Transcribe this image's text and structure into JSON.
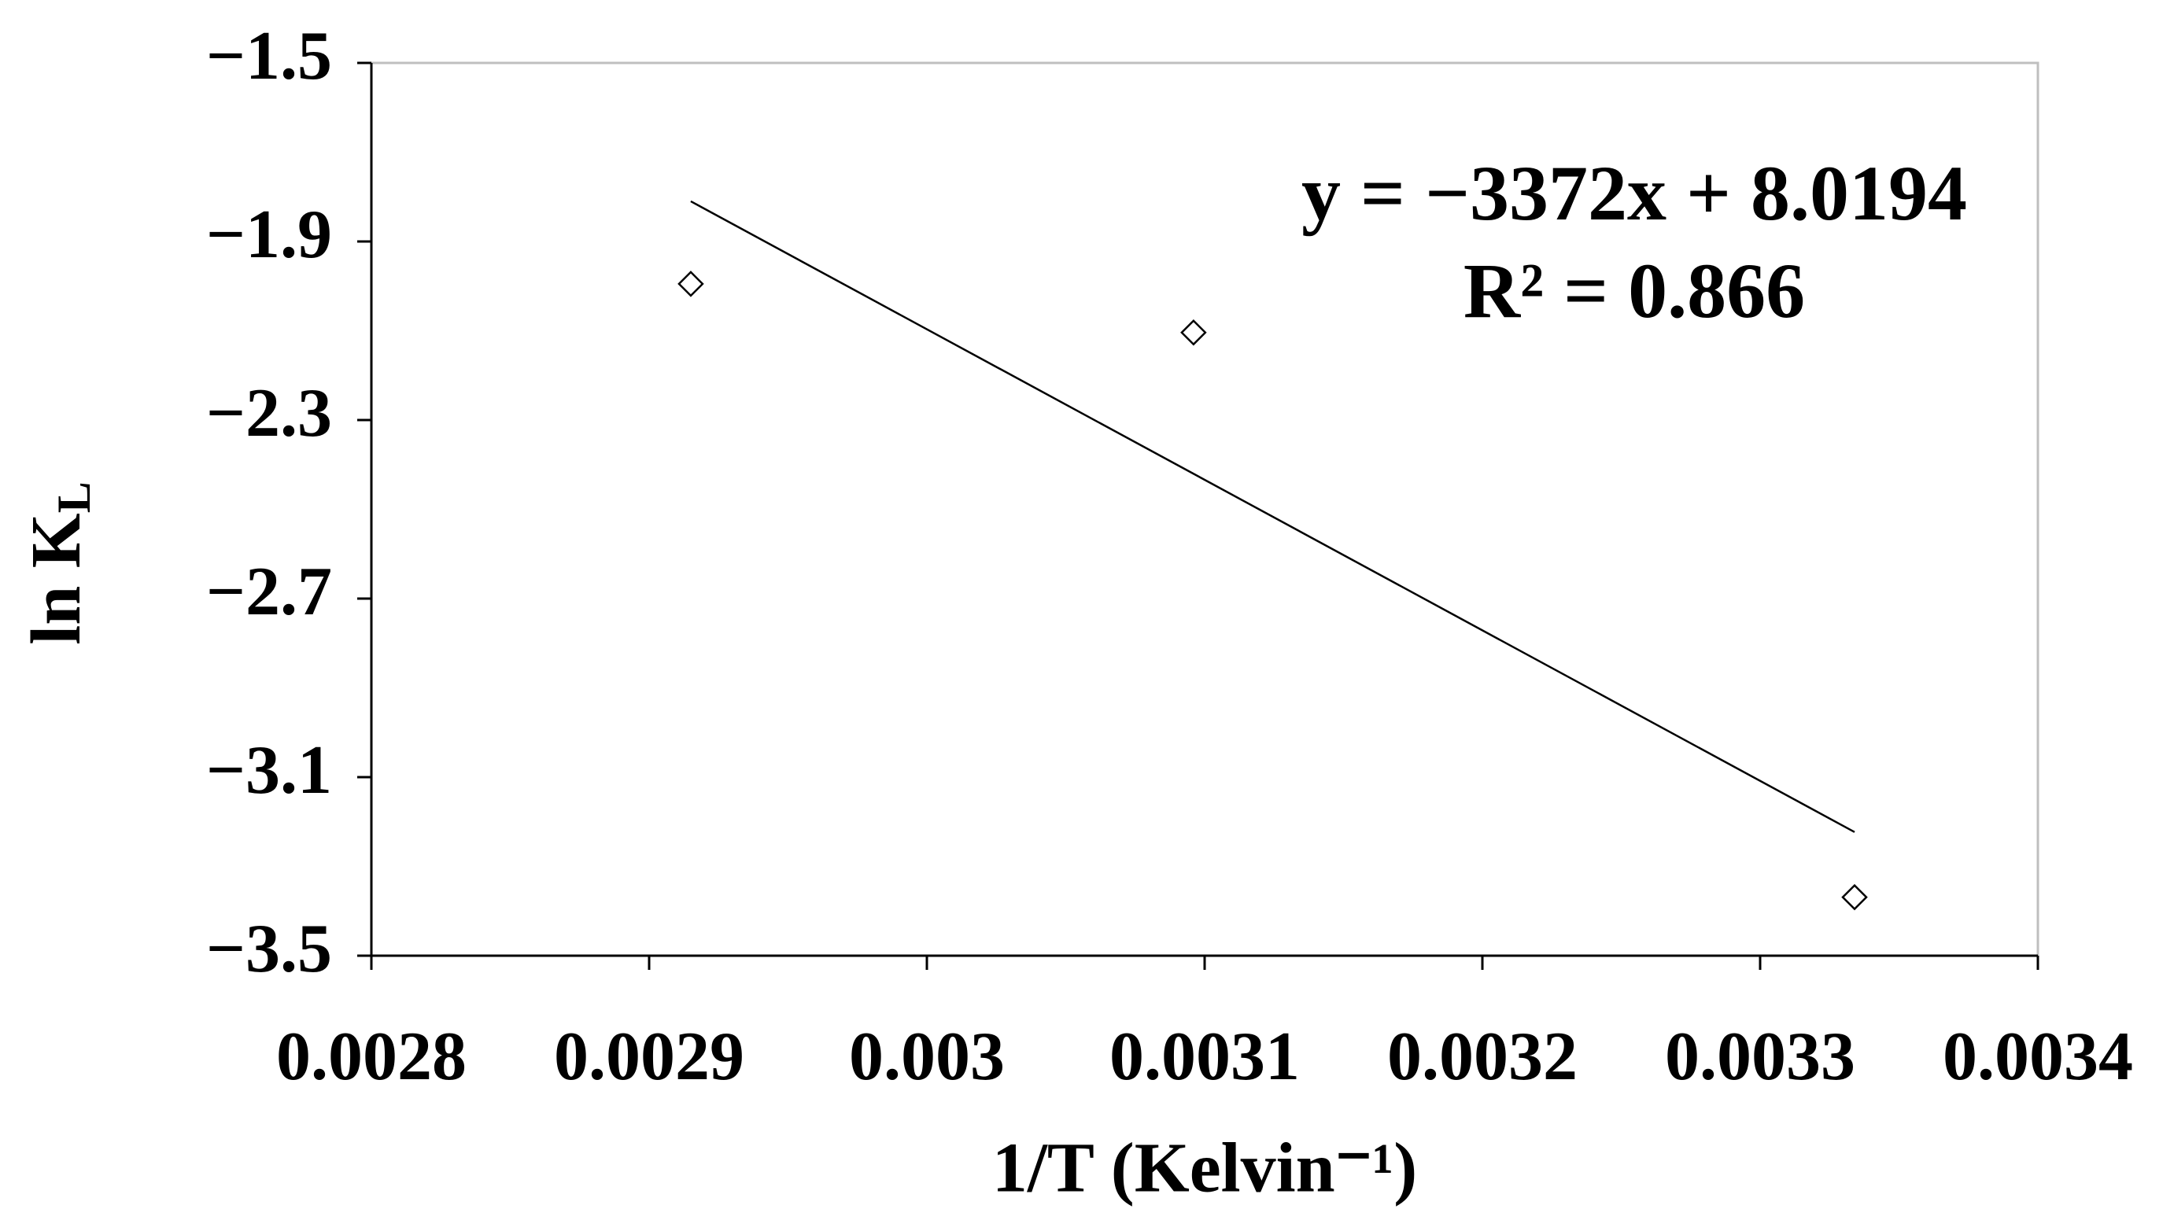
{
  "chart_data": {
    "type": "scatter",
    "x_label": "1/T (Kelvin⁻¹)",
    "y_label": {
      "text": "ln K",
      "subscript": "L"
    },
    "annotations": [
      "y = −3372x + 8.0194",
      "R² = 0.866"
    ],
    "x": [
      0.002915,
      0.003096,
      0.003334
    ],
    "values": [
      -1.995,
      -2.104,
      -3.369
    ],
    "color": "#000000",
    "trendline": {
      "x": [
        0.002915,
        0.003334
      ],
      "values": [
        -1.81,
        -3.223
      ]
    },
    "xlim": [
      0.0028,
      0.0034
    ],
    "ylim": [
      -3.5,
      -1.5
    ],
    "xticks": [
      0.0028,
      0.0029,
      0.003,
      0.0031,
      0.0032,
      0.0033,
      0.0034
    ],
    "yticks": [
      {
        "value": -1.5,
        "label": "−1.5"
      },
      {
        "value": -1.9,
        "label": "−1.9"
      },
      {
        "value": -2.3,
        "label": "−2.3"
      },
      {
        "value": -2.7,
        "label": "−2.7"
      },
      {
        "value": -3.1,
        "label": "−3.1"
      },
      {
        "value": -3.5,
        "label": "−3.5"
      }
    ],
    "grid": false
  }
}
